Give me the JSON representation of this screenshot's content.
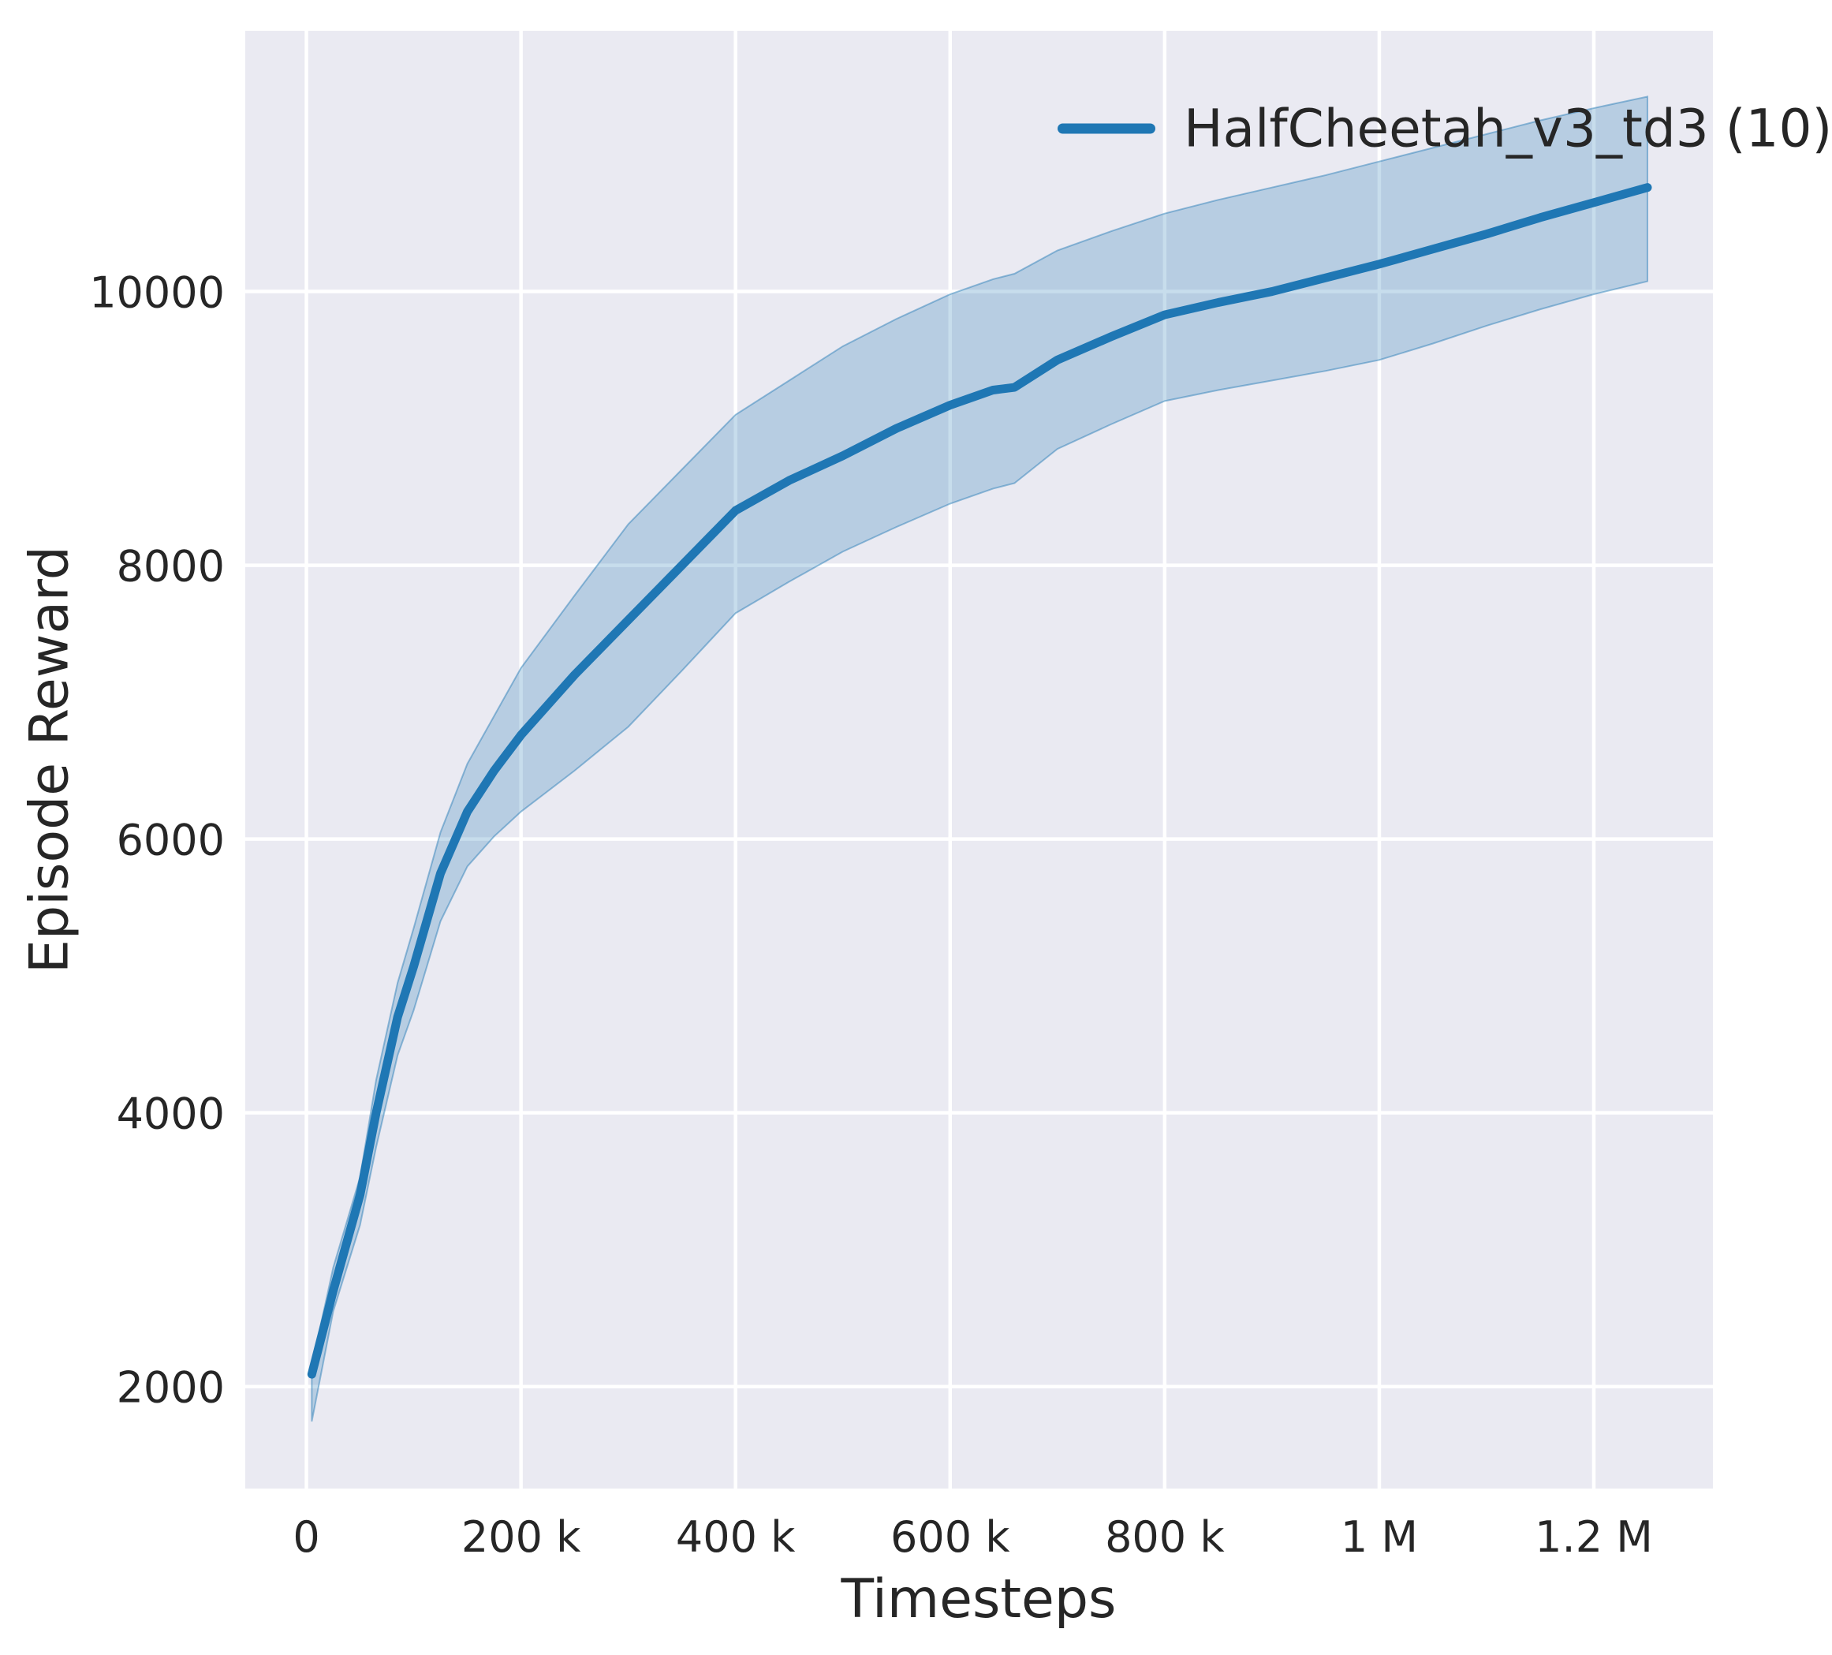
{
  "chart_data": {
    "type": "line",
    "title": "",
    "xlabel": "Timesteps",
    "ylabel": "Episode Reward",
    "grid": true,
    "plot_background": "#eaeaf2",
    "grid_color": "#ffffff",
    "text_color": "#262626",
    "legend": {
      "position": "upper-right",
      "entries": [
        {
          "label": "HalfCheetah_v3_td3 (10)",
          "color": "#1f77b4"
        }
      ]
    },
    "xlim": [
      -57000,
      1311000
    ],
    "ylim": [
      1255,
      11905
    ],
    "x_ticks": {
      "values": [
        0,
        200000,
        400000,
        600000,
        800000,
        1000000,
        1200000
      ],
      "labels": [
        "0",
        "200 k",
        "400 k",
        "600 k",
        "800 k",
        "1 M",
        "1.2 M"
      ]
    },
    "y_ticks": {
      "values": [
        2000,
        4000,
        6000,
        8000,
        10000
      ],
      "labels": [
        "2000",
        "4000",
        "6000",
        "8000",
        "10000"
      ]
    },
    "series": [
      {
        "name": "HalfCheetah_v3_td3 (10)",
        "color": "#1f77b4",
        "band_alpha": 0.25,
        "band_edge_alpha": 0.45,
        "x": [
          5000,
          25000,
          50000,
          65000,
          85000,
          100000,
          125000,
          150000,
          175000,
          200000,
          250000,
          300000,
          350000,
          400000,
          450000,
          500000,
          550000,
          600000,
          640000,
          660000,
          700000,
          750000,
          800000,
          850000,
          900000,
          950000,
          1000000,
          1050000,
          1100000,
          1150000,
          1200000,
          1250000
        ],
        "mean": [
          2090,
          2700,
          3400,
          4000,
          4700,
          5070,
          5750,
          6200,
          6500,
          6760,
          7200,
          7600,
          8000,
          8400,
          8620,
          8800,
          9000,
          9170,
          9280,
          9300,
          9500,
          9670,
          9830,
          9920,
          10000,
          10100,
          10200,
          10310,
          10420,
          10540,
          10650,
          10760
        ],
        "band_lower": [
          1745,
          2550,
          3180,
          3750,
          4420,
          4750,
          5400,
          5800,
          6020,
          6200,
          6500,
          6820,
          7230,
          7650,
          7880,
          8100,
          8280,
          8450,
          8560,
          8600,
          8850,
          9030,
          9200,
          9280,
          9350,
          9420,
          9500,
          9620,
          9750,
          9870,
          9980,
          10075
        ],
        "band_upper": [
          2150,
          2870,
          3530,
          4240,
          4950,
          5350,
          6050,
          6550,
          6900,
          7250,
          7780,
          8300,
          8700,
          9100,
          9350,
          9600,
          9800,
          9980,
          10090,
          10130,
          10300,
          10440,
          10570,
          10670,
          10760,
          10850,
          10950,
          11050,
          11150,
          11250,
          11340,
          11424
        ]
      }
    ]
  }
}
